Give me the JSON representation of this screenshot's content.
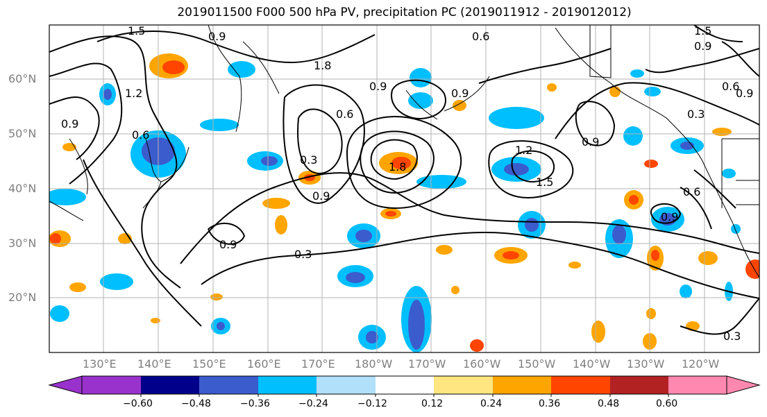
{
  "title": "2019011500 F000 500 hPa PV, precipitation PC (2019011912 - 2019012012)",
  "map": {
    "lat_labels": [
      "60°N",
      "50°N",
      "40°N",
      "30°N",
      "20°N"
    ],
    "lon_labels": [
      "130°E",
      "140°E",
      "150°E",
      "160°E",
      "170°E",
      "180°W",
      "170°W",
      "160°W",
      "150°W",
      "140°W",
      "130°W",
      "120°W"
    ],
    "contour_labels": [
      "1.5",
      "0.9",
      "0.6",
      "0.9",
      "1.8",
      "0.9",
      "1.5",
      "0.9",
      "1.2",
      "0.9",
      "0.6",
      "0.6",
      "0.3",
      "0.9",
      "1.8",
      "1.2",
      "1.5",
      "0.9",
      "0.3",
      "0.9",
      "0.6",
      "0.9",
      "0.6",
      "0.9",
      "0.3",
      "0.3"
    ],
    "gridlines": true
  },
  "colorbar": {
    "ticks": [
      "−0.60",
      "−0.48",
      "−0.36",
      "−0.24",
      "−0.12",
      "0.12",
      "0.24",
      "0.36",
      "0.48",
      "0.60"
    ],
    "colors": [
      "#9932cc",
      "#00008b",
      "#3a5ccc",
      "#00bfff",
      "#b0e0fa",
      "#ffffff",
      "#ffe680",
      "#ffa500",
      "#ff4500",
      "#b22222",
      "#ff88b0"
    ]
  }
}
